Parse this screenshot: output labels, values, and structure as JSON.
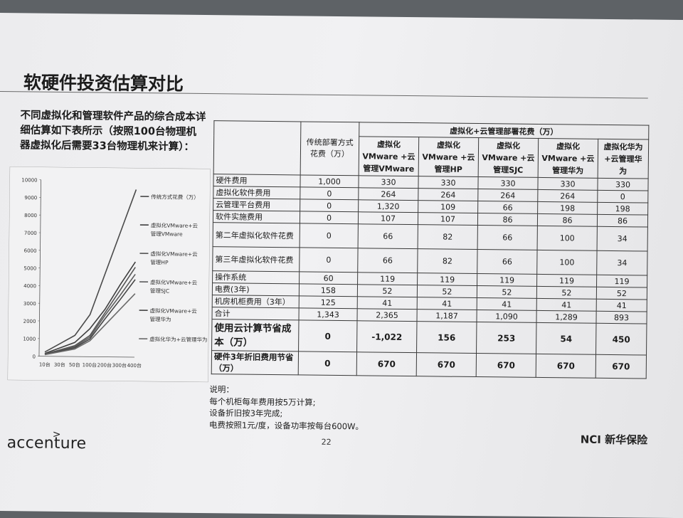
{
  "slide": {
    "title": "软硬件投资估算对比",
    "intro": "不同虚拟化和管理软件产品的综合成本详细估算如下表所示（按照100台物理机器虚拟化后需要33台物理机来计算）：",
    "page_number": "22",
    "left_logo": "accenture",
    "left_logo_mark": ">",
    "right_logo": "NCI 新华保险"
  },
  "table": {
    "header_traditional": "传统部署方式花费（万）",
    "header_group": "虚拟化+云管理部署花费（万）",
    "columns": [
      "虚拟化VMware +云管理VMware",
      "虚拟化VMware +云管理HP",
      "虚拟化VMware +云管理SJC",
      "虚拟化VMware +云管理华为",
      "虚拟化华为 +云管理华为"
    ],
    "rows": [
      {
        "label": "硬件费用",
        "values": [
          "1,000",
          "330",
          "330",
          "330",
          "330",
          "330"
        ]
      },
      {
        "label": "虚拟化软件费用",
        "values": [
          "0",
          "264",
          "264",
          "264",
          "264",
          "0"
        ]
      },
      {
        "label": "云管理平台费用",
        "values": [
          "0",
          "1,320",
          "109",
          "66",
          "198",
          "198"
        ]
      },
      {
        "label": "软件实施费用",
        "values": [
          "0",
          "107",
          "107",
          "86",
          "86",
          "86"
        ]
      },
      {
        "label": "第二年虚拟化软件花费",
        "values": [
          "0",
          "66",
          "82",
          "66",
          "100",
          "34"
        ]
      },
      {
        "label": "第三年虚拟化软件花费",
        "values": [
          "0",
          "66",
          "82",
          "66",
          "100",
          "34"
        ]
      },
      {
        "label": "操作系统",
        "values": [
          "60",
          "119",
          "119",
          "119",
          "119",
          "119"
        ]
      },
      {
        "label": "电费(3年)",
        "values": [
          "158",
          "52",
          "52",
          "52",
          "52",
          "52"
        ]
      },
      {
        "label": "机房机柜费用（3年）",
        "values": [
          "125",
          "41",
          "41",
          "41",
          "41",
          "41"
        ]
      },
      {
        "label": "合计",
        "values": [
          "1,343",
          "2,365",
          "1,187",
          "1,090",
          "1,289",
          "893"
        ]
      },
      {
        "label": "使用云计算节省成本（万）",
        "values": [
          "0",
          "-1,022",
          "156",
          "253",
          "54",
          "450"
        ]
      },
      {
        "label": "硬件3年折旧费用节省（万）",
        "values": [
          "0",
          "670",
          "670",
          "670",
          "670",
          "670"
        ]
      }
    ]
  },
  "notes": {
    "heading": "说明：",
    "lines": [
      "每个机柜每年费用按5万计算;",
      "设备折旧按3年完成;",
      "电费按照1元/度，设备功率按每台600W。"
    ]
  },
  "chart_data": {
    "type": "line",
    "title": "",
    "xlabel": "",
    "ylabel": "",
    "ylim": [
      0,
      10000
    ],
    "yticks": [
      "0",
      "1000",
      "2000",
      "3000",
      "4000",
      "5000",
      "6000",
      "7000",
      "8000",
      "9000",
      "10000"
    ],
    "categories": [
      "10台",
      "30台",
      "50台",
      "100台",
      "200台",
      "300台",
      "400台"
    ],
    "legend_position": "right",
    "series": [
      {
        "name": "传统方式花费（万）",
        "values": [
          240,
          720,
          1200,
          2390,
          4760,
          7130,
          9500
        ]
      },
      {
        "name": "虚拟化VMware+云管理VMware",
        "values": [
          160,
          480,
          800,
          1590,
          2700,
          4100,
          5400
        ]
      },
      {
        "name": "虚拟化VMware+云管理HP",
        "values": [
          120,
          370,
          620,
          1200,
          2500,
          3800,
          5100
        ]
      },
      {
        "name": "虚拟化VMware+云管理SJC",
        "values": [
          110,
          330,
          560,
          1100,
          2350,
          3500,
          4700
        ]
      },
      {
        "name": "虚拟化VMware+云管理华为",
        "values": [
          100,
          300,
          500,
          1000,
          2150,
          3250,
          4400
        ]
      },
      {
        "name": "虚拟化华为+云管理华为",
        "values": [
          90,
          260,
          430,
          900,
          1800,
          2700,
          3600
        ]
      }
    ]
  }
}
